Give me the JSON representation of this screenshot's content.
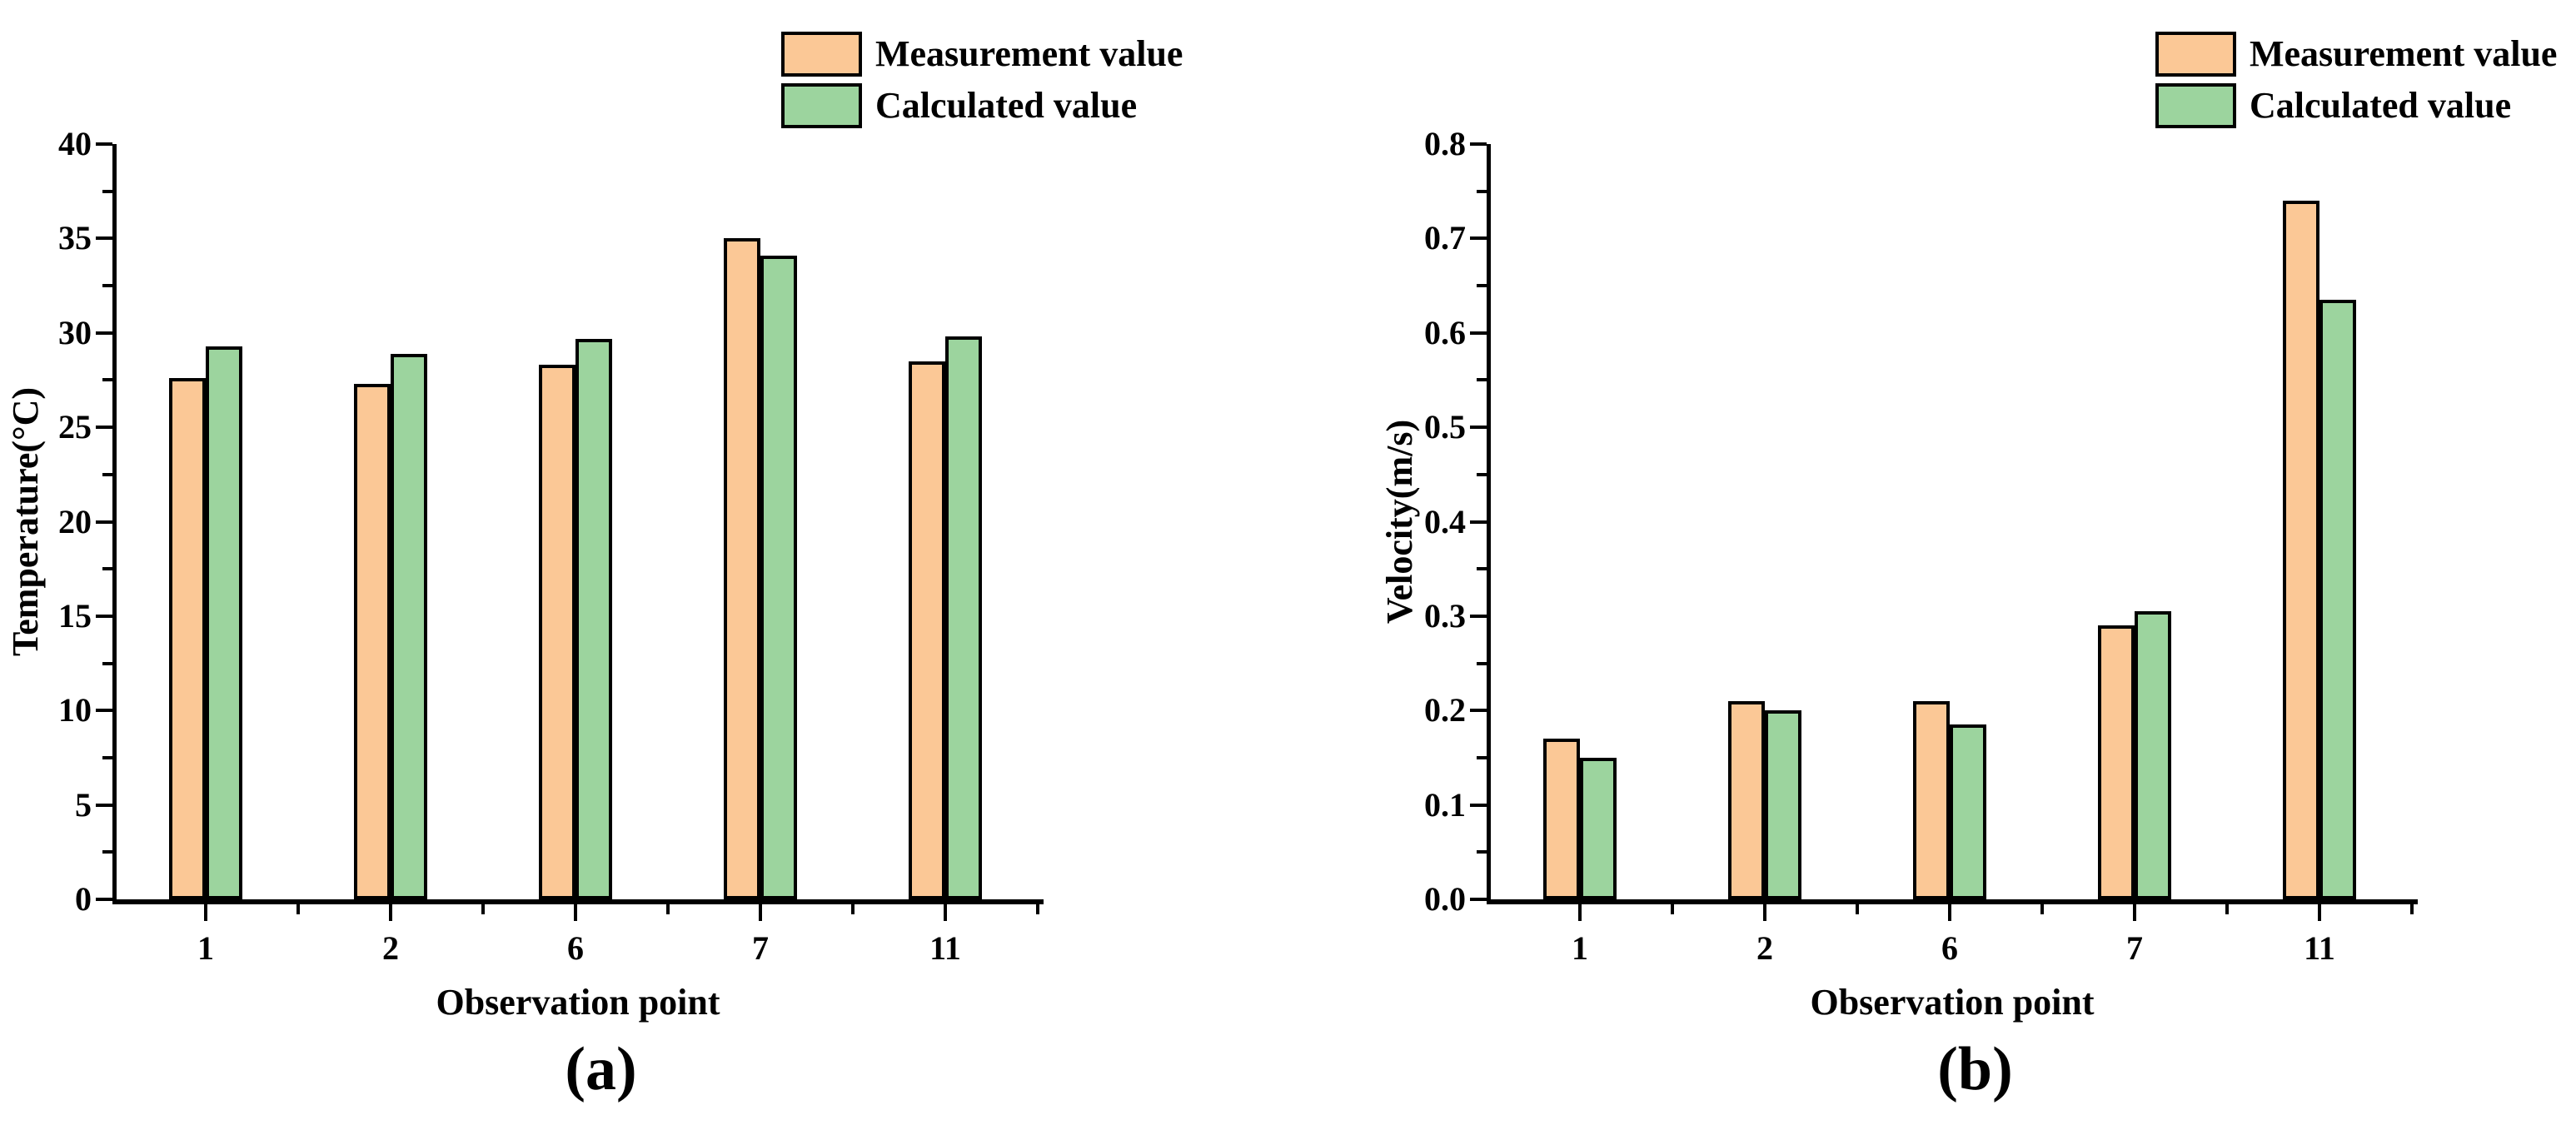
{
  "colors": {
    "measurement": "#FBC896",
    "calculated": "#9CD49E",
    "axis": "#000000",
    "background": "#FFFFFF"
  },
  "chart_data": [
    {
      "type": "bar",
      "panel": "(a)",
      "xlabel": "Observation point",
      "ylabel": "Temperature(°C)",
      "ylim": [
        0,
        40
      ],
      "ytick_step": 5,
      "ytick_decimals": 0,
      "grid": false,
      "legend_position": "top-right",
      "categories": [
        "1",
        "2",
        "6",
        "7",
        "11"
      ],
      "series": [
        {
          "name": "Measurement value",
          "color": "#FBC896",
          "values": [
            27.6,
            27.3,
            28.3,
            35.0,
            28.5
          ]
        },
        {
          "name": "Calculated value",
          "color": "#9CD49E",
          "values": [
            29.3,
            28.9,
            29.7,
            34.1,
            29.8
          ]
        }
      ]
    },
    {
      "type": "bar",
      "panel": "(b)",
      "xlabel": "Observation point",
      "ylabel": "Velocity(m/s)",
      "ylim": [
        0,
        0.8
      ],
      "ytick_step": 0.1,
      "ytick_decimals": 1,
      "grid": false,
      "legend_position": "top-right",
      "categories": [
        "1",
        "2",
        "6",
        "7",
        "11"
      ],
      "series": [
        {
          "name": "Measurement value",
          "color": "#FBC896",
          "values": [
            0.17,
            0.21,
            0.21,
            0.29,
            0.74
          ]
        },
        {
          "name": "Calculated value",
          "color": "#9CD49E",
          "values": [
            0.15,
            0.2,
            0.185,
            0.305,
            0.635
          ]
        }
      ]
    }
  ]
}
